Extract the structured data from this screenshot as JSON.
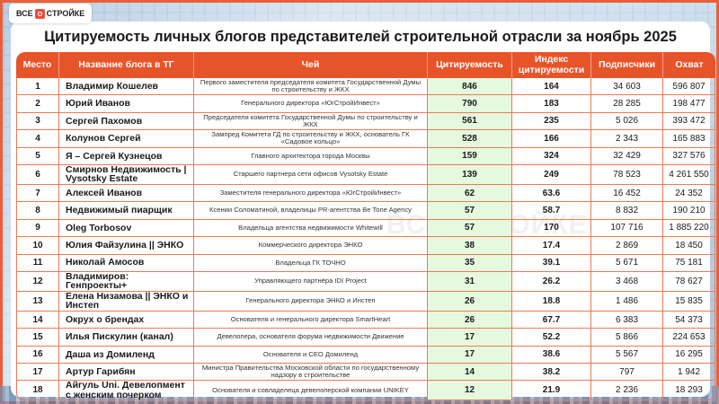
{
  "brand": {
    "logo_left": "ВСЕ",
    "logo_right": "СТРОЙКЕ",
    "watermark": "ВСЕ СТРОЙКЕ",
    "accent": "#e8542a",
    "highlight": "#e5f9df"
  },
  "title": "Цитируемость личных блогов представителей строительной отрасли за ноябрь 2025",
  "table": {
    "headers": [
      "Место",
      "Название блога в ТГ",
      "Чей",
      "Цитируемость",
      "Индекс цитируемости",
      "Подписчики",
      "Охват"
    ],
    "rows": [
      {
        "place": "1",
        "name": "Владимир Кошелев",
        "role": "Первого заместителя председателя комитета Государственной Думы по строительству и ЖКХ",
        "citations": "846",
        "index": "164",
        "subscribers": "34 603",
        "reach": "596 807"
      },
      {
        "place": "2",
        "name": "Юрий Иванов",
        "role": "Генерального директора «ЮгСтройИнвест»",
        "citations": "790",
        "index": "183",
        "subscribers": "28 285",
        "reach": "198 477"
      },
      {
        "place": "3",
        "name": "Сергей Пахомов",
        "role": "Председателя комитета Государственной Думы по строительству и ЖКХ",
        "citations": "561",
        "index": "235",
        "subscribers": "5 026",
        "reach": "393 472"
      },
      {
        "place": "4",
        "name": "Колунов Сергей",
        "role": "Зампред Комитета ГД по строительству и ЖКХ, основатель ГК «Садовое кольцо»",
        "citations": "528",
        "index": "166",
        "subscribers": "2 343",
        "reach": "165 883"
      },
      {
        "place": "5",
        "name": "Я – Сергей Кузнецов",
        "role": "Главного архитектора города Москвы",
        "citations": "159",
        "index": "324",
        "subscribers": "32 429",
        "reach": "327 576"
      },
      {
        "place": "6",
        "name": "Смирнов Недвижимость | Vysotsky Estate",
        "role": "Старшего партнера сети офисов Vysotsky Estate",
        "citations": "139",
        "index": "249",
        "subscribers": "78 523",
        "reach": "4 261 550"
      },
      {
        "place": "7",
        "name": "Алексей Иванов",
        "role": "Заместителя генерального директора «ЮгСтройИнвест»",
        "citations": "62",
        "index": "63.6",
        "subscribers": "16 452",
        "reach": "24 352"
      },
      {
        "place": "8",
        "name": "Недвижимый пиарщик",
        "role": "Ксении Соломатиной, владелицы PR-агентства Be Tone Agency",
        "citations": "57",
        "index": "58.7",
        "subscribers": "8 832",
        "reach": "190 210"
      },
      {
        "place": "9",
        "name": "Oleg Torbosov",
        "role": "Владельца агентства недвижимости Whitewill",
        "citations": "57",
        "index": "170",
        "subscribers": "107 716",
        "reach": "1 885 220"
      },
      {
        "place": "10",
        "name": "Юлия Файзулина || ЭНКО",
        "role": "Коммерческого директора ЭНКО",
        "citations": "38",
        "index": "17.4",
        "subscribers": "2 869",
        "reach": "18 450"
      },
      {
        "place": "11",
        "name": "Николай Амосов",
        "role": "Владельца ГК ТОЧНО",
        "citations": "35",
        "index": "39.1",
        "subscribers": "5 671",
        "reach": "75 181"
      },
      {
        "place": "12",
        "name": "Владимиров: Генпроекты+",
        "role": "Управляющего партнёра IDI Project",
        "citations": "31",
        "index": "26.2",
        "subscribers": "3 468",
        "reach": "78 627"
      },
      {
        "place": "13",
        "name": "Елена Низамова || ЭНКО и Инстеп",
        "role": "Генерального директора ЭНКО и Инстеп",
        "citations": "26",
        "index": "18.8",
        "subscribers": "1 486",
        "reach": "15 835"
      },
      {
        "place": "14",
        "name": "Окрух о брендах",
        "role": "Основателя и генерального директора SmartHeart",
        "citations": "26",
        "index": "67.7",
        "subscribers": "6 383",
        "reach": "54 373"
      },
      {
        "place": "15",
        "name": "Илья Пискулин (канал)",
        "role": "Девелопера, основателя форума недвижимости Движение",
        "citations": "17",
        "index": "52.2",
        "subscribers": "5 866",
        "reach": "224 653"
      },
      {
        "place": "16",
        "name": "Даша из Домиленд",
        "role": "Основателя и СЕО Домиленд",
        "citations": "17",
        "index": "38.6",
        "subscribers": "5 567",
        "reach": "16 295"
      },
      {
        "place": "17",
        "name": "Артур Гарибян",
        "role": "Министра Правительства Московской области по государственному надзору в строительстве",
        "citations": "14",
        "index": "38.2",
        "subscribers": "797",
        "reach": "1 942"
      },
      {
        "place": "18",
        "name": "Айгуль Uni. Девелопмент с женским почерком",
        "role": "Основателя и совладелеца девелоперской компании UNIKEY",
        "citations": "12",
        "index": "21.9",
        "subscribers": "2 236",
        "reach": "18 293"
      }
    ]
  }
}
